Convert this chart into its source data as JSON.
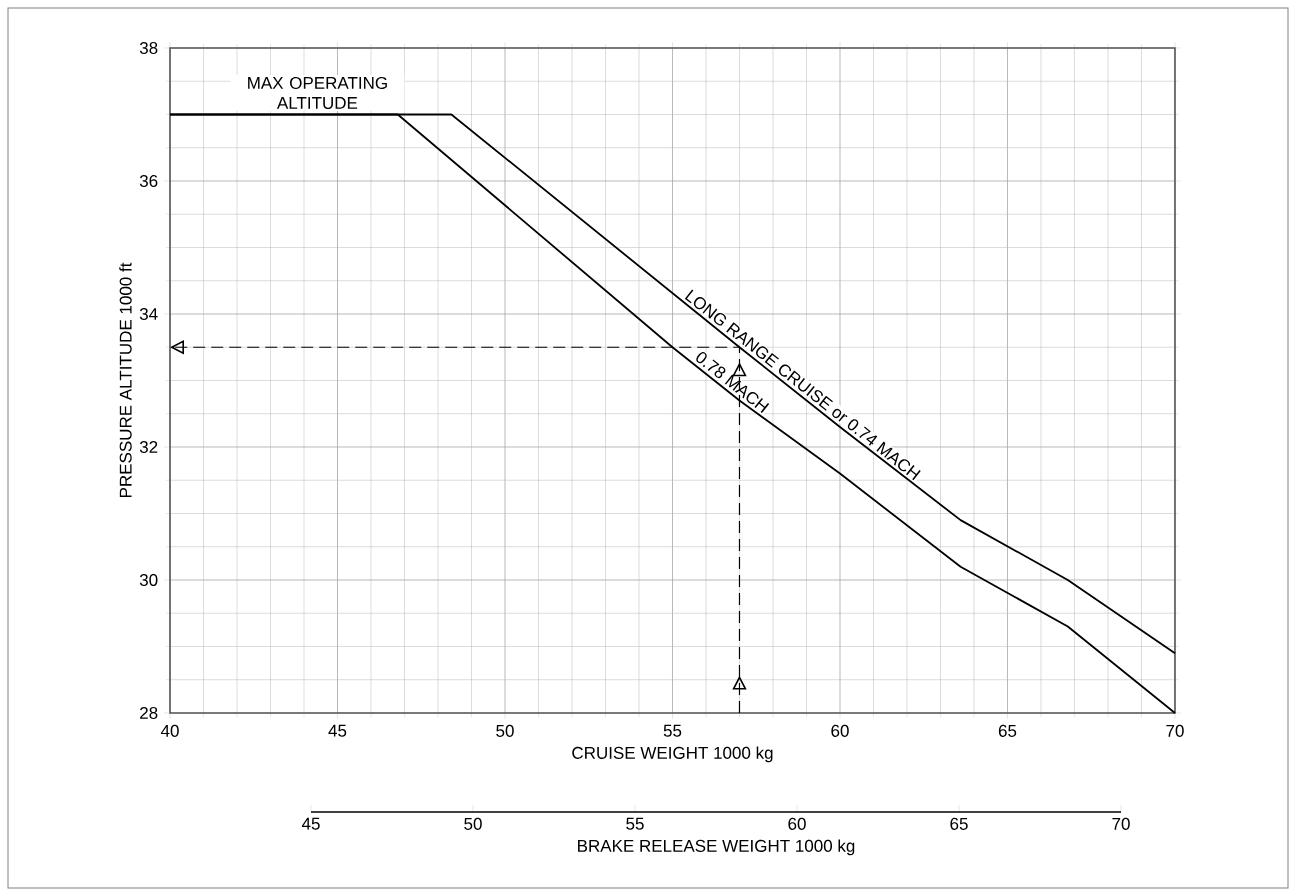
{
  "chart_data": {
    "type": "line",
    "xlabel": "CRUISE WEIGHT  1000 kg",
    "ylabel": "PRESSURE ALTITUDE  1000 ft",
    "x2label": "BRAKE RELEASE WEIGHT  1000 kg",
    "xlim": [
      40,
      70
    ],
    "ylim": [
      28,
      38
    ],
    "xticks": [
      40,
      45,
      50,
      55,
      60,
      65,
      70
    ],
    "yticks": [
      28,
      30,
      32,
      34,
      36,
      38
    ],
    "x2lim": [
      45,
      70
    ],
    "x2ticks": [
      45,
      50,
      55,
      60,
      65,
      70
    ],
    "grid": true,
    "legend": false,
    "marker": "none",
    "line_style": "solid",
    "annotations": [
      "MAX OPERATING ALTITUDE"
    ],
    "series": [
      {
        "name": "LONG RANGE CRUISE  or  0.74 MACH",
        "color": "#000000",
        "x": [
          40,
          48.4,
          57,
          60,
          63.6,
          66.8,
          70
        ],
        "values": [
          37,
          37,
          33.5,
          32.3,
          30.9,
          30.0,
          28.9
        ]
      },
      {
        "name": "0.78 MACH",
        "color": "#000000",
        "x": [
          40,
          46.8,
          55,
          57,
          60,
          63.6,
          66.8,
          70
        ],
        "values": [
          37,
          37,
          33.5,
          32.7,
          31.6,
          30.2,
          29.3,
          28
        ]
      },
      {
        "color": "#000000",
        "line_style": "dashed",
        "x": [
          57,
          57,
          40
        ],
        "values": [
          28,
          33.5,
          33.5
        ]
      }
    ]
  }
}
